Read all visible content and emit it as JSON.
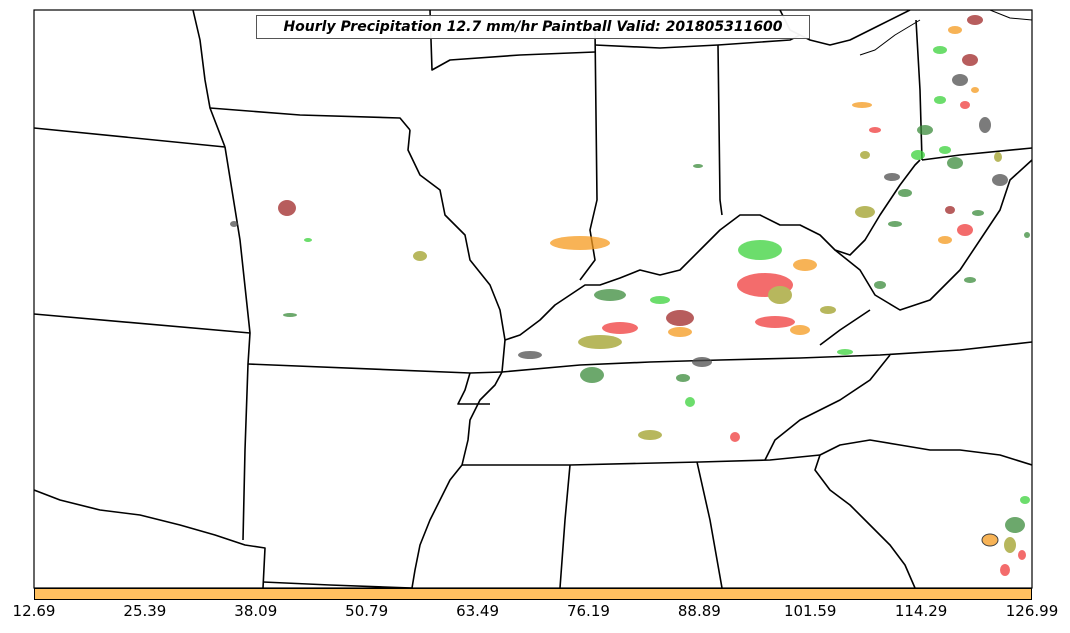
{
  "title": "Hourly Precipitation 12.7 mm/hr Paintball Valid: 201805311600",
  "colorbar": {
    "color": "#ffc060",
    "ticks": [
      "12.69",
      "25.39",
      "38.09",
      "50.79",
      "63.49",
      "76.19",
      "88.89",
      "101.59",
      "114.29",
      "126.99"
    ]
  },
  "colors": {
    "member_red": "#f03c3c",
    "member_orange": "#f59a1e",
    "member_green": "#3cd23c",
    "member_darkgreen": "#3c8c3c",
    "member_olive": "#a0a028",
    "member_darkred": "#a02828",
    "member_gray": "#505050"
  }
}
